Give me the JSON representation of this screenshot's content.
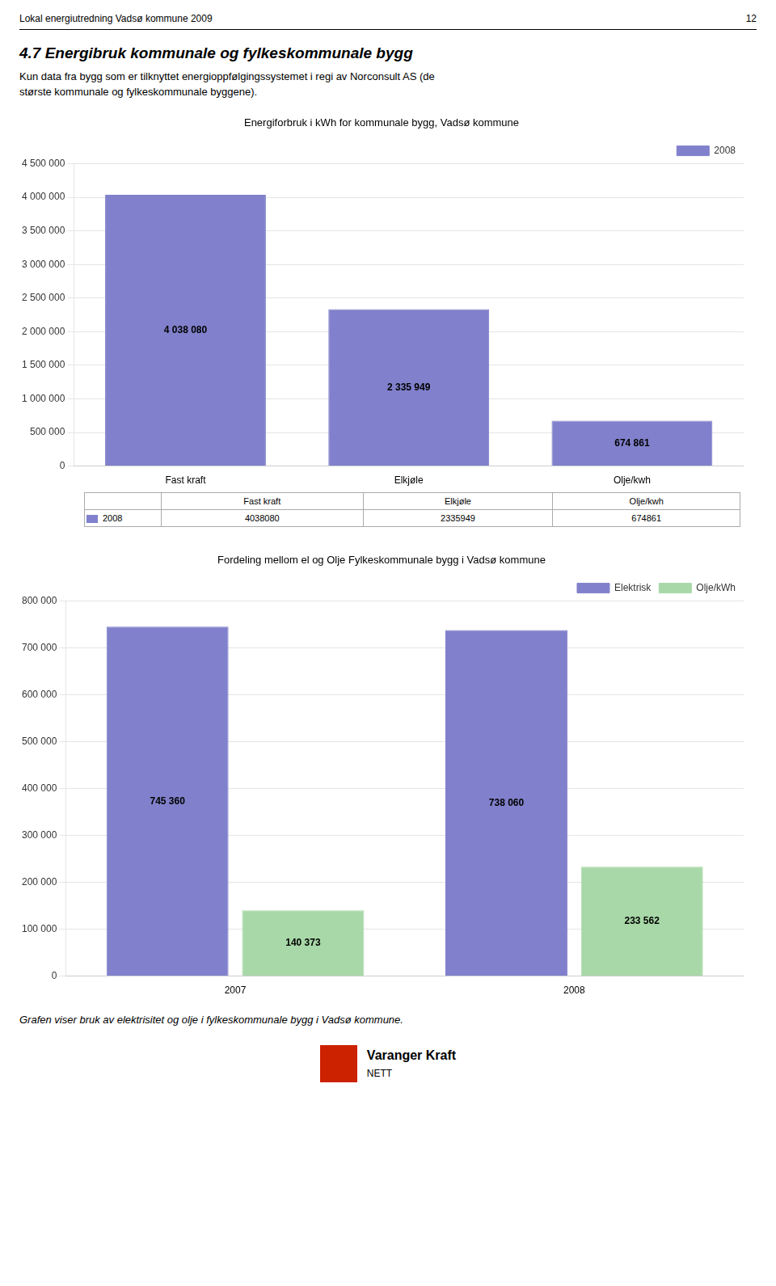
{
  "page_header": [
    "Lokal energiutredning Vadsø kommune 2009",
    "12"
  ],
  "section_title": "4.7 Energibruk kommunale og fylkeskommunale bygg",
  "body_text": [
    "Kun data fra bygg som er tilknyttet energioppfølgingssystemet i regi av Norconsult AS (de",
    "største kommunale og fylkeskommunale byggene)."
  ],
  "footer_text": "Grafen viser bruk av elektrisitet og olje i fylkeskommunale bygg i Vadsø kommune.",
  "logo_text": [
    "Varanger Kraft",
    "NETT"
  ],
  "logo_color": "#cc2200",
  "chart_data": [
    {
      "type": "bar",
      "title": "Energiforbruk i kWh for kommunale bygg, Vadsø kommune",
      "categories": [
        "Fast kraft",
        "Elkjøle",
        "Olje/kwh"
      ],
      "series": [
        {
          "name": "2008",
          "color": "#8080cc",
          "values": [
            4038080,
            2335949,
            674861
          ],
          "value_labels": [
            "4 038 080",
            "2 335 949",
            "674 861"
          ]
        }
      ],
      "ylim": [
        0,
        4500000
      ],
      "yticks": [
        0,
        {
          "value": 500000,
          "label": "500 000"
        },
        {
          "value": 1000000,
          "label": "1 000 000"
        },
        {
          "value": 1500000,
          "label": "1 500 000"
        },
        {
          "value": 2000000,
          "label": "2 000 000"
        },
        {
          "value": 2500000,
          "label": "2 500 000"
        },
        {
          "value": 3000000,
          "label": "3 000 000"
        },
        {
          "value": 3500000,
          "label": "3 500 000"
        },
        {
          "value": 4000000,
          "label": "4 000 000"
        },
        {
          "value": 4500000,
          "label": "4 500 000"
        }
      ],
      "grid": true,
      "legend": "upper right",
      "data_labels": true,
      "table": {
        "rows": [
          {
            "name": "2008",
            "values": [
              4038080,
              2335949,
              674861
            ]
          }
        ]
      }
    },
    {
      "type": "bar",
      "title": "Fordeling mellom el og Olje Fylkeskommunale bygg i Vadsø kommune",
      "categories": [
        "2007",
        "2008"
      ],
      "series": [
        {
          "name": "Elektrisk",
          "color": "#8080cc",
          "values": [
            745360,
            738060
          ],
          "value_labels": [
            "745 360",
            "738 060"
          ]
        },
        {
          "name": "Olje/kWh",
          "color": "#a8d8a8",
          "values": [
            140373,
            233562
          ],
          "value_labels": [
            "140 373",
            "233 562"
          ]
        }
      ],
      "ylim": [
        0,
        800000
      ],
      "yticks": [
        0,
        {
          "value": 100000,
          "label": "100 000"
        },
        {
          "value": 200000,
          "label": "200 000"
        },
        {
          "value": 300000,
          "label": "300 000"
        },
        {
          "value": 400000,
          "label": "400 000"
        },
        {
          "value": 500000,
          "label": "500 000"
        },
        {
          "value": 600000,
          "label": "600 000"
        },
        {
          "value": 700000,
          "label": "700 000"
        },
        {
          "value": 800000,
          "label": "800 000"
        }
      ],
      "grid": true,
      "legend": "upper right",
      "data_labels": true
    }
  ]
}
